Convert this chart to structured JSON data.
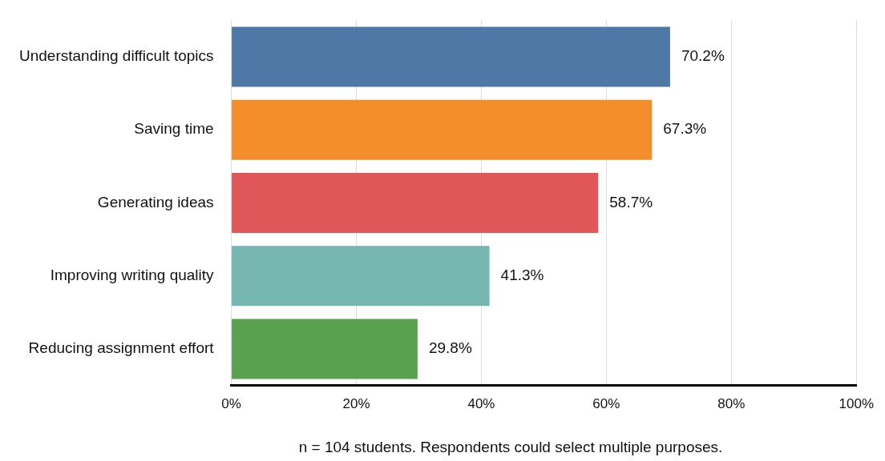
{
  "chart_data": {
    "type": "bar",
    "orientation": "horizontal",
    "categories": [
      "Understanding difficult topics",
      "Saving time",
      "Generating ideas",
      "Improving writing quality",
      "Reducing assignment effort"
    ],
    "values": [
      70.2,
      67.3,
      58.7,
      41.3,
      29.8
    ],
    "colors": [
      "#4e79a7",
      "#f28e2b",
      "#e15759",
      "#76b7b2",
      "#59a14f"
    ],
    "value_labels": [
      "70.2%",
      "67.3%",
      "58.7%",
      "41.3%",
      "29.8%"
    ],
    "xlim": [
      0,
      100
    ],
    "xticks": [
      {
        "value": 0,
        "label": "0%"
      },
      {
        "value": 20,
        "label": "20%"
      },
      {
        "value": 40,
        "label": "40%"
      },
      {
        "value": 60,
        "label": "60%"
      },
      {
        "value": 80,
        "label": "80%"
      },
      {
        "value": 100,
        "label": "100%"
      }
    ],
    "grid": "x",
    "legend": false,
    "annotations": [
      "n = 104 students. Respondents could select multiple purposes."
    ]
  }
}
